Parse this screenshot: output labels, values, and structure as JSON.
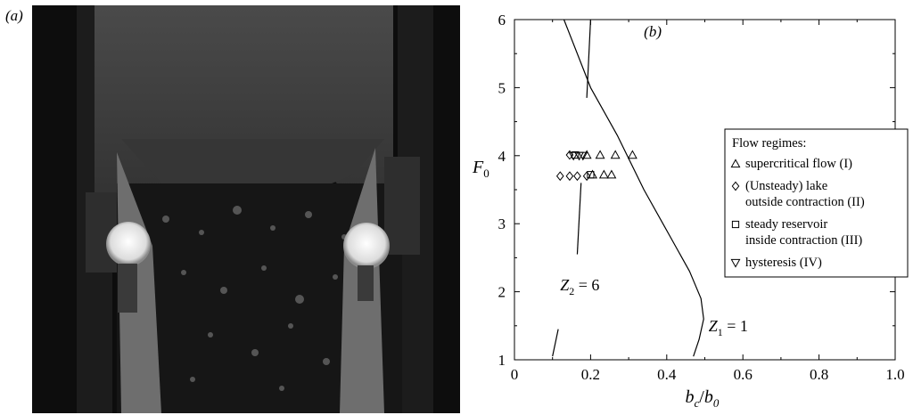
{
  "panel_a": {
    "label": "(a)"
  },
  "chart_data": {
    "type": "scatter",
    "panel_label": "(b)",
    "xlabel": "b_c/b_0",
    "ylabel": "F_0",
    "xlim": [
      0,
      1.0
    ],
    "ylim": [
      1,
      6
    ],
    "x_ticks": [
      "0",
      "0.2",
      "0.4",
      "0.6",
      "0.8",
      "1.0"
    ],
    "y_ticks": [
      "1",
      "2",
      "3",
      "4",
      "5",
      "6"
    ],
    "grid": false,
    "legend": {
      "title": "Flow regimes:",
      "placement": "right",
      "entries": [
        {
          "symbol": "triangle-up",
          "lines": [
            "supercritical flow (I)"
          ]
        },
        {
          "symbol": "diamond",
          "lines": [
            "(Unsteady) lake",
            "outside contraction (II)"
          ]
        },
        {
          "symbol": "square",
          "lines": [
            "steady reservoir",
            "inside contraction (III)"
          ]
        },
        {
          "symbol": "triangle-down",
          "lines": [
            "hysteresis (IV)"
          ]
        }
      ]
    },
    "series": [
      {
        "symbol": "triangle-up",
        "points": [
          [
            0.19,
            4.01
          ],
          [
            0.225,
            4.01
          ],
          [
            0.265,
            4.01
          ],
          [
            0.31,
            4.01
          ],
          [
            0.205,
            3.72
          ],
          [
            0.235,
            3.72
          ],
          [
            0.255,
            3.72
          ]
        ]
      },
      {
        "symbol": "diamond",
        "points": [
          [
            0.145,
            4.01
          ],
          [
            0.12,
            3.7
          ],
          [
            0.145,
            3.7
          ],
          [
            0.165,
            3.7
          ],
          [
            0.19,
            3.7
          ]
        ]
      },
      {
        "symbol": "square",
        "points": [
          [
            0.16,
            4.01
          ],
          [
            0.2,
            3.72
          ]
        ]
      },
      {
        "symbol": "triangle-down",
        "points": [
          [
            0.155,
            4.0
          ],
          [
            0.17,
            4.0
          ],
          [
            0.18,
            4.0
          ]
        ]
      }
    ],
    "curves": [
      {
        "label_main": "Z",
        "label_sub": "1",
        "label_rest": " = 1",
        "points": [
          [
            0.13,
            6.0
          ],
          [
            0.2,
            5.0
          ],
          [
            0.27,
            4.3
          ],
          [
            0.34,
            3.5
          ],
          [
            0.41,
            2.8
          ],
          [
            0.46,
            2.3
          ],
          [
            0.49,
            1.9
          ],
          [
            0.497,
            1.6
          ],
          [
            0.485,
            1.3
          ],
          [
            0.47,
            1.05
          ]
        ]
      },
      {
        "label_main": "Z",
        "label_sub": "2",
        "label_rest": " = 6",
        "segments": [
          [
            [
              0.2,
              6.0
            ],
            [
              0.19,
              4.85
            ]
          ],
          [
            [
              0.175,
              3.6
            ],
            [
              0.165,
              2.55
            ]
          ],
          [
            [
              0.115,
              1.45
            ],
            [
              0.1,
              1.05
            ]
          ]
        ]
      }
    ]
  }
}
